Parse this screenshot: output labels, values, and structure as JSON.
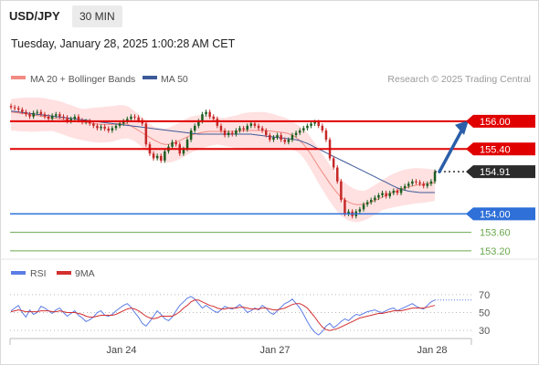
{
  "header": {
    "symbol": "USD/JPY",
    "timeframe": "30 MIN",
    "datetime": "Tuesday, January 28, 2025 1:00:28 AM CET"
  },
  "legend": {
    "ma20": "MA 20 + Bollinger Bands",
    "ma50": "MA 50",
    "credit": "Research © 2025 Trading Central"
  },
  "rsi_legend": {
    "rsi": "RSI",
    "ma": "9MA"
  },
  "colors": {
    "ma20": "#f28b82",
    "ma50": "#3d5a99",
    "resistance": "#e00000",
    "support": "#2e6fd8",
    "support_minor": "#6aa84f",
    "bollinger": "#ffdcdc",
    "candle_up": "#1b5e20",
    "candle_down": "#c62828",
    "rsi": "#5b7ce6",
    "rsi_ma": "#d32f2f",
    "last_price": "#2b2b2b",
    "arrow": "#2a5ea8"
  },
  "chart_data": [
    {
      "type": "candlestick",
      "x_axis": [
        "Jan 24",
        "Jan 27",
        "Jan 28"
      ],
      "ylim": [
        153.1,
        156.45
      ],
      "levels": [
        {
          "label": "156.00",
          "value": 156.0,
          "kind": "resistance"
        },
        {
          "label": "155.40",
          "value": 155.4,
          "kind": "resistance"
        },
        {
          "label": "154.91",
          "value": 154.91,
          "kind": "last"
        },
        {
          "label": "154.00",
          "value": 154.0,
          "kind": "support"
        },
        {
          "label": "153.60",
          "value": 153.6,
          "kind": "support_minor"
        },
        {
          "label": "153.20",
          "value": 153.2,
          "kind": "support_minor"
        }
      ],
      "forecast_arrow": {
        "from": 154.91,
        "to": 156.0
      },
      "close": [
        156.3,
        156.28,
        156.25,
        156.2,
        156.15,
        156.1,
        156.18,
        156.2,
        156.15,
        156.1,
        156.05,
        156.12,
        156.15,
        156.1,
        156.08,
        156.0,
        156.05,
        156.1,
        156.02,
        155.98,
        156.0,
        155.95,
        155.9,
        155.85,
        155.88,
        155.84,
        155.8,
        155.85,
        155.9,
        155.95,
        156.0,
        156.05,
        156.1,
        156.08,
        156.02,
        155.95,
        155.5,
        155.3,
        155.2,
        155.25,
        155.15,
        155.35,
        155.45,
        155.55,
        155.5,
        155.3,
        155.4,
        155.6,
        155.8,
        155.9,
        156.0,
        156.15,
        156.2,
        156.1,
        156.05,
        155.9,
        155.8,
        155.7,
        155.75,
        155.72,
        155.8,
        155.85,
        155.82,
        155.9,
        155.95,
        155.9,
        155.85,
        155.8,
        155.7,
        155.6,
        155.65,
        155.7,
        155.6,
        155.55,
        155.6,
        155.7,
        155.75,
        155.8,
        155.85,
        155.9,
        155.95,
        155.98,
        155.9,
        155.8,
        155.6,
        155.2,
        155.0,
        154.7,
        154.3,
        154.0,
        154.05,
        153.95,
        154.05,
        154.1,
        154.2,
        154.25,
        154.3,
        154.35,
        154.4,
        154.45,
        154.38,
        154.45,
        154.5,
        154.45,
        154.55,
        154.6,
        154.65,
        154.7,
        154.68,
        154.65,
        154.6,
        154.65,
        154.7,
        154.91
      ],
      "ma20": [
        156.2,
        156.19,
        156.18,
        156.17,
        156.16,
        156.14,
        156.13,
        156.12,
        156.11,
        156.1,
        156.08,
        156.07,
        156.06,
        156.05,
        156.04,
        156.02,
        156.01,
        156.0,
        155.99,
        155.98,
        155.97,
        155.96,
        155.95,
        155.94,
        155.93,
        155.93,
        155.93,
        155.93,
        155.94,
        155.95,
        155.95,
        155.94,
        155.9,
        155.85,
        155.8,
        155.75,
        155.7,
        155.65,
        155.6,
        155.56,
        155.52,
        155.5,
        155.5,
        155.52,
        155.55,
        155.58,
        155.62,
        155.66,
        155.7,
        155.72,
        155.74,
        155.76,
        155.77,
        155.78,
        155.78,
        155.78,
        155.78,
        155.78,
        155.78,
        155.78,
        155.78,
        155.79,
        155.8,
        155.8,
        155.8,
        155.8,
        155.8,
        155.8,
        155.8,
        155.79,
        155.78,
        155.77,
        155.76,
        155.75,
        155.73,
        155.7,
        155.65,
        155.58,
        155.5,
        155.4,
        155.28,
        155.15,
        155.02,
        154.9,
        154.78,
        154.66,
        154.55,
        154.45,
        154.36,
        154.3,
        154.25,
        154.22,
        154.2,
        154.2,
        154.21,
        154.23,
        154.26,
        154.29,
        154.32,
        154.36,
        154.4,
        154.44,
        154.47,
        154.5,
        154.53,
        154.56,
        154.58,
        154.6,
        154.62,
        154.63,
        154.64,
        154.65,
        154.66,
        154.67
      ],
      "ma50": [
        156.22,
        156.21,
        156.2,
        156.19,
        156.18,
        156.17,
        156.16,
        156.15,
        156.14,
        156.13,
        156.12,
        156.11,
        156.1,
        156.09,
        156.08,
        156.07,
        156.06,
        156.05,
        156.04,
        156.03,
        156.02,
        156.01,
        156.0,
        155.99,
        155.98,
        155.97,
        155.96,
        155.95,
        155.94,
        155.93,
        155.92,
        155.91,
        155.9,
        155.89,
        155.88,
        155.87,
        155.86,
        155.85,
        155.84,
        155.83,
        155.82,
        155.81,
        155.8,
        155.79,
        155.78,
        155.77,
        155.76,
        155.75,
        155.74,
        155.73,
        155.72,
        155.72,
        155.72,
        155.72,
        155.72,
        155.72,
        155.72,
        155.72,
        155.72,
        155.72,
        155.72,
        155.72,
        155.72,
        155.72,
        155.72,
        155.71,
        155.7,
        155.69,
        155.68,
        155.67,
        155.66,
        155.65,
        155.64,
        155.63,
        155.62,
        155.61,
        155.6,
        155.58,
        155.55,
        155.52,
        155.48,
        155.44,
        155.4,
        155.36,
        155.32,
        155.28,
        155.24,
        155.2,
        155.16,
        155.12,
        155.08,
        155.04,
        155.0,
        154.96,
        154.92,
        154.88,
        154.84,
        154.8,
        154.76,
        154.72,
        154.68,
        154.64,
        154.6,
        154.56,
        154.53,
        154.51,
        154.49,
        154.48,
        154.47,
        154.46,
        154.46,
        154.46,
        154.46,
        154.46
      ]
    },
    {
      "type": "line",
      "title": "RSI",
      "ylim": [
        20,
        75
      ],
      "tick_labels": [
        "70",
        "50",
        "30"
      ],
      "ticks": [
        70,
        50,
        30
      ],
      "series": [
        {
          "name": "RSI",
          "values": [
            52,
            55,
            58,
            50,
            45,
            53,
            48,
            50,
            57,
            55,
            52,
            49,
            53,
            55,
            50,
            46,
            49,
            52,
            47,
            44,
            40,
            42,
            45,
            50,
            52,
            47,
            46,
            48,
            52,
            55,
            58,
            60,
            56,
            50,
            45,
            38,
            35,
            40,
            46,
            52,
            48,
            43,
            41,
            45,
            52,
            58,
            62,
            66,
            68,
            65,
            60,
            55,
            58,
            55,
            52,
            50,
            53,
            57,
            55,
            54,
            56,
            59,
            55,
            50,
            52,
            55,
            53,
            58,
            55,
            50,
            48,
            52,
            56,
            60,
            62,
            65,
            60,
            55,
            48,
            40,
            33,
            28,
            25,
            29,
            35,
            38,
            33,
            36,
            40,
            43,
            41,
            45,
            48,
            47,
            49,
            51,
            52,
            53,
            51,
            50,
            52,
            54,
            55,
            52,
            54,
            56,
            58,
            60,
            57,
            55,
            54,
            58,
            62,
            64
          ]
        },
        {
          "name": "9MA",
          "values": [
            51,
            52,
            53,
            52,
            51,
            51,
            51,
            51,
            52,
            52,
            52,
            51,
            51,
            52,
            51,
            50,
            50,
            50,
            49,
            48,
            46,
            45,
            45,
            46,
            47,
            47,
            47,
            47,
            48,
            50,
            52,
            54,
            55,
            54,
            52,
            49,
            46,
            44,
            43,
            44,
            46,
            46,
            46,
            46,
            48,
            51,
            55,
            58,
            62,
            64,
            64,
            62,
            60,
            58,
            57,
            55,
            54,
            54,
            55,
            55,
            55,
            56,
            56,
            55,
            54,
            54,
            54,
            55,
            55,
            54,
            53,
            53,
            54,
            55,
            57,
            59,
            60,
            60,
            58,
            55,
            50,
            45,
            39,
            34,
            31,
            30,
            31,
            32,
            34,
            36,
            38,
            40,
            42,
            44,
            45,
            46,
            47,
            48,
            49,
            49,
            50,
            51,
            52,
            52,
            52,
            53,
            54,
            55,
            55,
            55,
            55,
            56,
            57,
            58
          ]
        }
      ]
    }
  ]
}
